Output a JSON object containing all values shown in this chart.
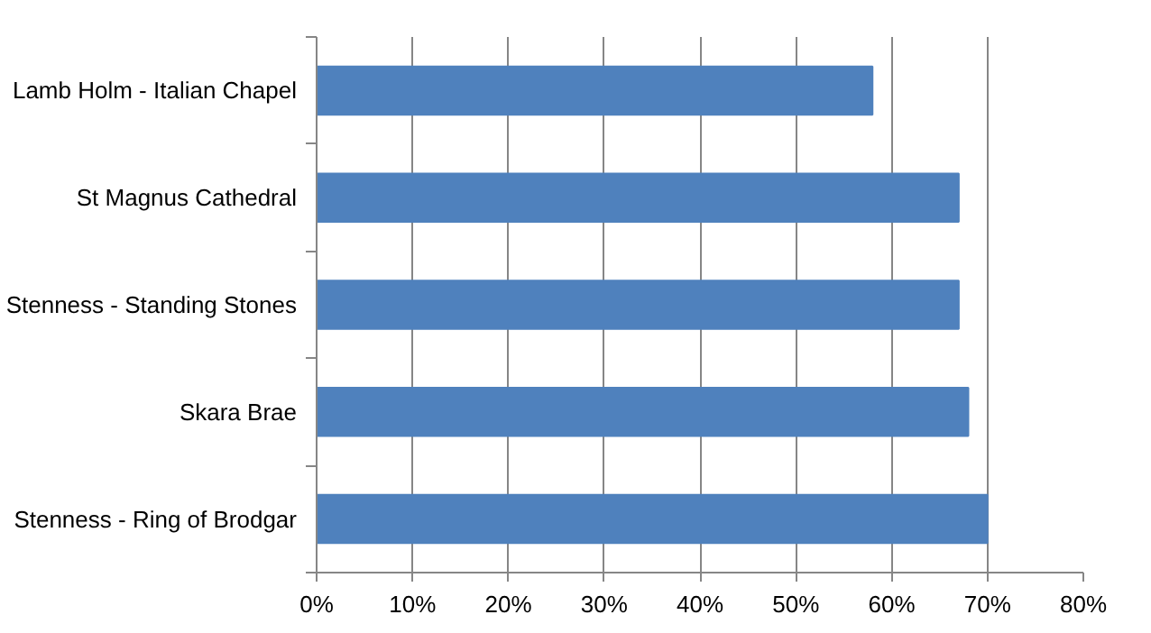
{
  "chart_data": {
    "type": "bar",
    "orientation": "horizontal",
    "categories": [
      "Lamb Holm - Italian Chapel",
      "St Magnus Cathedral",
      "Stenness - Standing Stones",
      "Skara Brae",
      "Stenness - Ring of Brodgar"
    ],
    "values": [
      58,
      67,
      67,
      68,
      70
    ],
    "color": "#4f81bd",
    "xlim": [
      0,
      80
    ],
    "xticks": [
      {
        "value": 0,
        "label": "0%"
      },
      {
        "value": 10,
        "label": "10%"
      },
      {
        "value": 20,
        "label": "20%"
      },
      {
        "value": 30,
        "label": "30%"
      },
      {
        "value": 40,
        "label": "40%"
      },
      {
        "value": 50,
        "label": "50%"
      },
      {
        "value": 60,
        "label": "60%"
      },
      {
        "value": 70,
        "label": "70%"
      },
      {
        "value": 80,
        "label": "80%"
      }
    ],
    "grid": "x"
  }
}
